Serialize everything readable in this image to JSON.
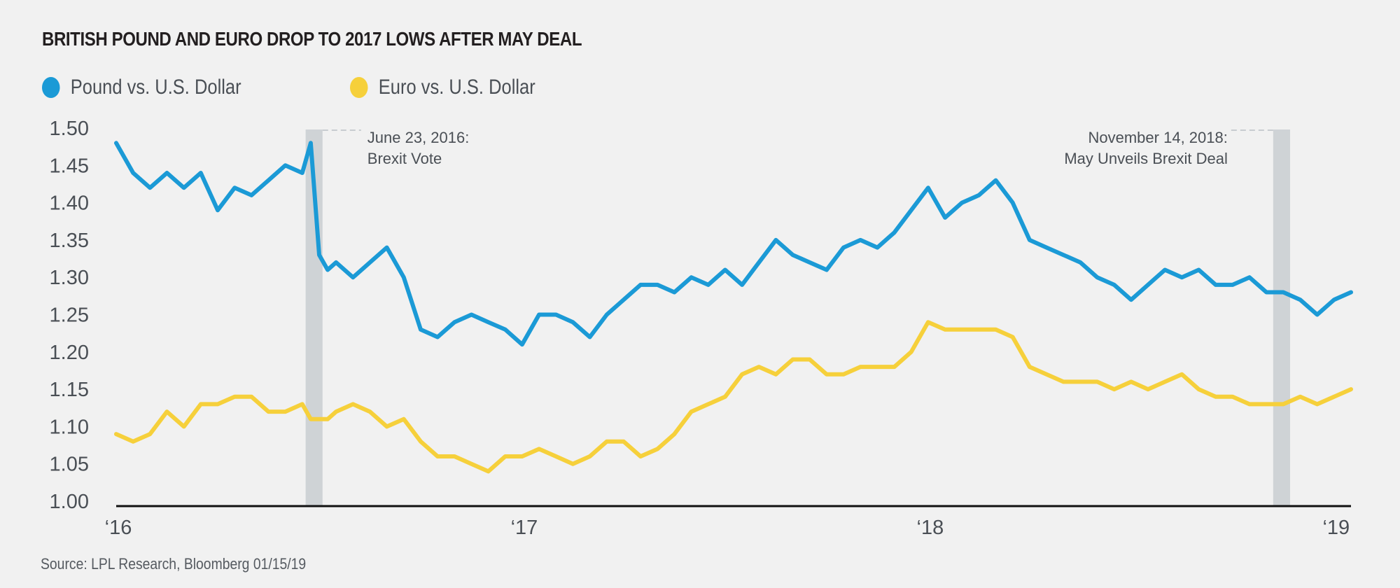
{
  "chart_data": {
    "type": "line",
    "title": "BRITISH POUND AND EURO DROP TO 2017 LOWS AFTER MAY DEAL",
    "xlabel": "",
    "ylabel": "",
    "ylim": [
      1.0,
      1.5
    ],
    "yticks": [
      "1.50",
      "1.45",
      "1.40",
      "1.35",
      "1.30",
      "1.25",
      "1.20",
      "1.15",
      "1.10",
      "1.05",
      "1.00"
    ],
    "ytick_values": [
      1.5,
      1.45,
      1.4,
      1.35,
      1.3,
      1.25,
      1.2,
      1.15,
      1.1,
      1.05,
      1.0
    ],
    "xticks": [
      {
        "label": "‘16",
        "month": 0
      },
      {
        "label": "‘17",
        "month": 12
      },
      {
        "label": "‘18",
        "month": 24
      },
      {
        "label": "‘19",
        "month": 36
      }
    ],
    "x_unit": "months since Jan 2016",
    "xlim": [
      0,
      36.5
    ],
    "grid": false,
    "legend_position": "top-left",
    "shaded_periods": [
      {
        "name": "brexit-vote",
        "start": 5.6,
        "end": 6.1
      },
      {
        "name": "may-deal",
        "start": 34.2,
        "end": 34.7
      }
    ],
    "annotations": [
      {
        "name": "brexit-vote-annotation",
        "line1": "June 23, 2016:",
        "line2": "Brexit Vote",
        "align": "left"
      },
      {
        "name": "may-deal-annotation",
        "line1": "November 14, 2018:",
        "line2": "May Unveils Brexit Deal",
        "align": "right"
      }
    ],
    "x": [
      0,
      0.5,
      1,
      1.5,
      2,
      2.5,
      3,
      3.5,
      4,
      4.5,
      5,
      5.5,
      5.75,
      6,
      6.25,
      6.5,
      7,
      7.5,
      8,
      8.5,
      9,
      9.5,
      10,
      10.5,
      11,
      11.5,
      12,
      12.5,
      13,
      13.5,
      14,
      14.5,
      15,
      15.5,
      16,
      16.5,
      17,
      17.5,
      18,
      18.5,
      19,
      19.5,
      20,
      20.5,
      21,
      21.5,
      22,
      22.5,
      23,
      23.5,
      24,
      24.5,
      25,
      25.5,
      26,
      26.5,
      27,
      27.5,
      28,
      28.5,
      29,
      29.5,
      30,
      30.5,
      31,
      31.5,
      32,
      32.5,
      33,
      33.5,
      34,
      34.5,
      35,
      35.5,
      36,
      36.5
    ],
    "series": [
      {
        "name": "Pound vs. U.S. Dollar",
        "color": "#1b9ad6",
        "values": [
          1.48,
          1.44,
          1.42,
          1.44,
          1.42,
          1.44,
          1.39,
          1.42,
          1.41,
          1.43,
          1.45,
          1.44,
          1.48,
          1.33,
          1.31,
          1.32,
          1.3,
          1.32,
          1.34,
          1.3,
          1.23,
          1.22,
          1.24,
          1.25,
          1.24,
          1.23,
          1.21,
          1.25,
          1.25,
          1.24,
          1.22,
          1.25,
          1.27,
          1.29,
          1.29,
          1.28,
          1.3,
          1.29,
          1.31,
          1.29,
          1.32,
          1.35,
          1.33,
          1.32,
          1.31,
          1.34,
          1.35,
          1.34,
          1.36,
          1.39,
          1.42,
          1.38,
          1.4,
          1.41,
          1.43,
          1.4,
          1.35,
          1.34,
          1.33,
          1.32,
          1.3,
          1.29,
          1.27,
          1.29,
          1.31,
          1.3,
          1.31,
          1.29,
          1.29,
          1.3,
          1.28,
          1.28,
          1.27,
          1.25,
          1.27,
          1.28
        ]
      },
      {
        "name": "Euro vs. U.S. Dollar",
        "color": "#f6d03b",
        "values": [
          1.09,
          1.08,
          1.09,
          1.12,
          1.1,
          1.13,
          1.13,
          1.14,
          1.14,
          1.12,
          1.12,
          1.13,
          1.11,
          1.11,
          1.11,
          1.12,
          1.13,
          1.12,
          1.1,
          1.11,
          1.08,
          1.06,
          1.06,
          1.05,
          1.04,
          1.06,
          1.06,
          1.07,
          1.06,
          1.05,
          1.06,
          1.08,
          1.08,
          1.06,
          1.07,
          1.09,
          1.12,
          1.13,
          1.14,
          1.17,
          1.18,
          1.17,
          1.19,
          1.19,
          1.17,
          1.17,
          1.18,
          1.18,
          1.18,
          1.2,
          1.24,
          1.23,
          1.23,
          1.23,
          1.23,
          1.22,
          1.18,
          1.17,
          1.16,
          1.16,
          1.16,
          1.15,
          1.16,
          1.15,
          1.16,
          1.17,
          1.15,
          1.14,
          1.14,
          1.13,
          1.13,
          1.13,
          1.14,
          1.13,
          1.14,
          1.15
        ]
      }
    ]
  },
  "legend": [
    {
      "label": "Pound vs. U.S. Dollar",
      "color": "#1b9ad6"
    },
    {
      "label": "Euro vs. U.S. Dollar",
      "color": "#f6d03b"
    }
  ],
  "source": "Source: LPL Research, Bloomberg  01/15/19"
}
